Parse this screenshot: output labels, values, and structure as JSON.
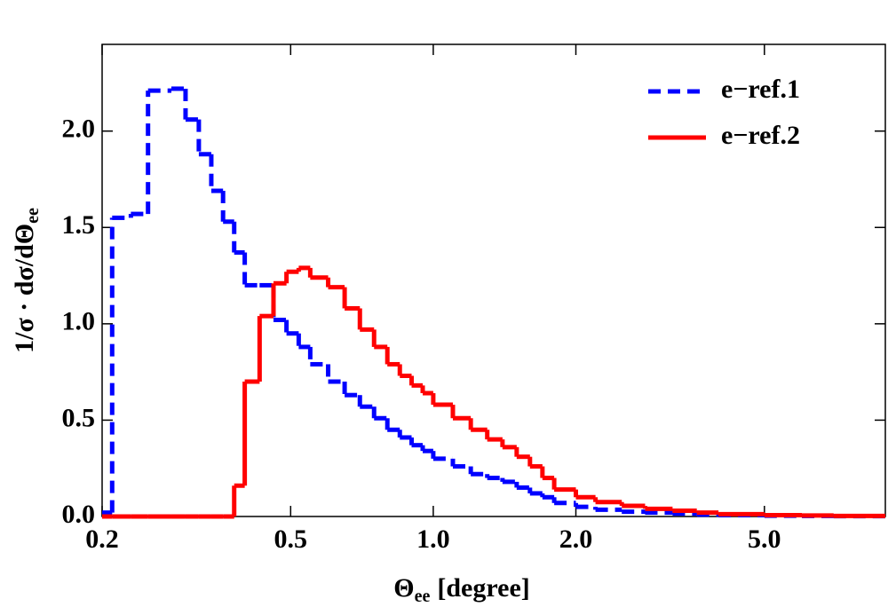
{
  "chart_data": {
    "type": "histogram",
    "x_label": {
      "main": "Θ",
      "sub": "ee",
      "unit": "[degree]"
    },
    "y_label": {
      "main": "1/σ · dσ/dΘ",
      "sub": "ee"
    },
    "xscale": "log",
    "xlim": [
      0.2,
      9.0
    ],
    "ylim": [
      0,
      2.45
    ],
    "xticks": [
      0.2,
      0.5,
      {
        "value": 1.0,
        "label": "1.0"
      },
      {
        "value": 2.0,
        "label": "2.0"
      },
      {
        "value": 5.0,
        "label": "5.0"
      }
    ],
    "yticks": [
      {
        "value": 0.0,
        "label": "0.0"
      },
      0.5,
      {
        "value": 1.0,
        "label": "1.0"
      },
      1.5,
      {
        "value": 2.0,
        "label": "2.0"
      }
    ],
    "legend": "upper right",
    "bins": [
      0.2,
      0.21,
      0.23,
      0.25,
      0.28,
      0.3,
      0.32,
      0.34,
      0.36,
      0.38,
      0.4,
      0.43,
      0.46,
      0.49,
      0.52,
      0.55,
      0.6,
      0.65,
      0.7,
      0.75,
      0.8,
      0.85,
      0.9,
      0.95,
      1.0,
      1.1,
      1.2,
      1.3,
      1.4,
      1.5,
      1.6,
      1.7,
      1.8,
      2.0,
      2.2,
      2.5,
      2.8,
      3.2,
      3.6,
      4.0,
      5.0,
      6.0,
      7.0,
      9.0
    ],
    "series": [
      {
        "name": "e−ref.1",
        "color": "#0000ff",
        "dashed": true,
        "values": [
          0.02,
          1.55,
          1.57,
          2.21,
          2.22,
          2.06,
          1.88,
          1.69,
          1.53,
          1.37,
          1.2,
          1.2,
          1.02,
          0.95,
          0.88,
          0.79,
          0.7,
          0.63,
          0.57,
          0.51,
          0.45,
          0.41,
          0.37,
          0.34,
          0.3,
          0.26,
          0.22,
          0.2,
          0.18,
          0.15,
          0.12,
          0.1,
          0.07,
          0.05,
          0.035,
          0.025,
          0.02,
          0.015,
          0.01,
          0.007,
          0.004,
          0.003,
          0.002
        ]
      },
      {
        "name": "e−ref.2",
        "color": "#ff0000",
        "dashed": false,
        "values": [
          0,
          0,
          0,
          0,
          0,
          0,
          0,
          0,
          0,
          0.16,
          0.7,
          1.04,
          1.21,
          1.27,
          1.29,
          1.24,
          1.19,
          1.08,
          0.97,
          0.88,
          0.79,
          0.73,
          0.68,
          0.64,
          0.58,
          0.51,
          0.45,
          0.4,
          0.36,
          0.31,
          0.26,
          0.2,
          0.14,
          0.1,
          0.075,
          0.055,
          0.04,
          0.03,
          0.02,
          0.012,
          0.007,
          0.005,
          0.003
        ]
      }
    ]
  }
}
